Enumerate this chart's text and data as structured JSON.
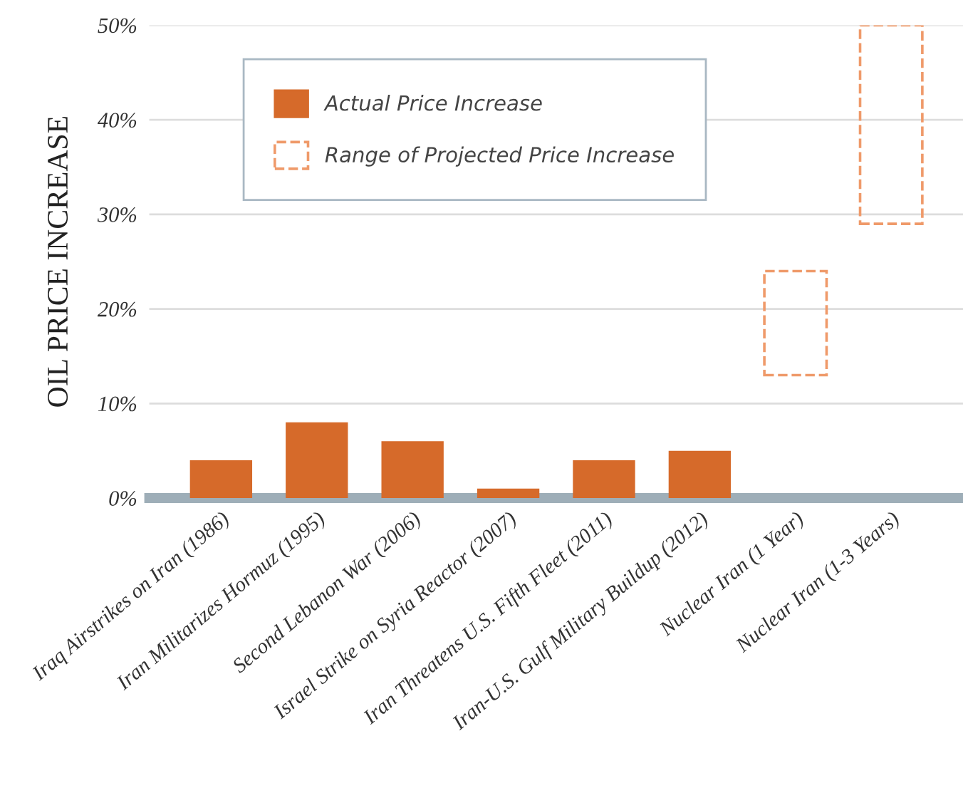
{
  "chart_data": {
    "type": "bar",
    "ylabel": "OIL PRICE INCREASE",
    "categories": [
      "Iraq Airstrikes on Iran (1986)",
      "Iran Militarizes Hormuz (1995)",
      "Second Lebanon War (2006)",
      "Israel Strike on Syria Reactor (2007)",
      "Iran Threatens U.S. Fifth Fleet (2011)",
      "Iran-U.S. Gulf Military Buildup (2012)",
      "Nuclear Iran (1 Year)",
      "Nuclear Iran (1-3 Years)"
    ],
    "series": [
      {
        "name": "Actual Price Increase",
        "color": "#d66a2a",
        "values": [
          4,
          8,
          6,
          1,
          4,
          5,
          null,
          null
        ]
      },
      {
        "name": "Range of Projected Price Increase",
        "color": "#ef9a6a",
        "line_style": "dashed",
        "base": [
          null,
          null,
          null,
          null,
          null,
          null,
          13,
          29
        ],
        "values": [
          null,
          null,
          null,
          null,
          null,
          null,
          11,
          21
        ]
      }
    ],
    "ylim": [
      0,
      50
    ],
    "yticks": [
      {
        "value": 0,
        "label": "0%"
      },
      {
        "value": 10,
        "label": "10%"
      },
      {
        "value": 20,
        "label": "20%"
      },
      {
        "value": 30,
        "label": "30%"
      },
      {
        "value": 40,
        "label": "40%"
      },
      {
        "value": 50,
        "label": "50%"
      }
    ],
    "grid": "y",
    "legend": "top"
  }
}
